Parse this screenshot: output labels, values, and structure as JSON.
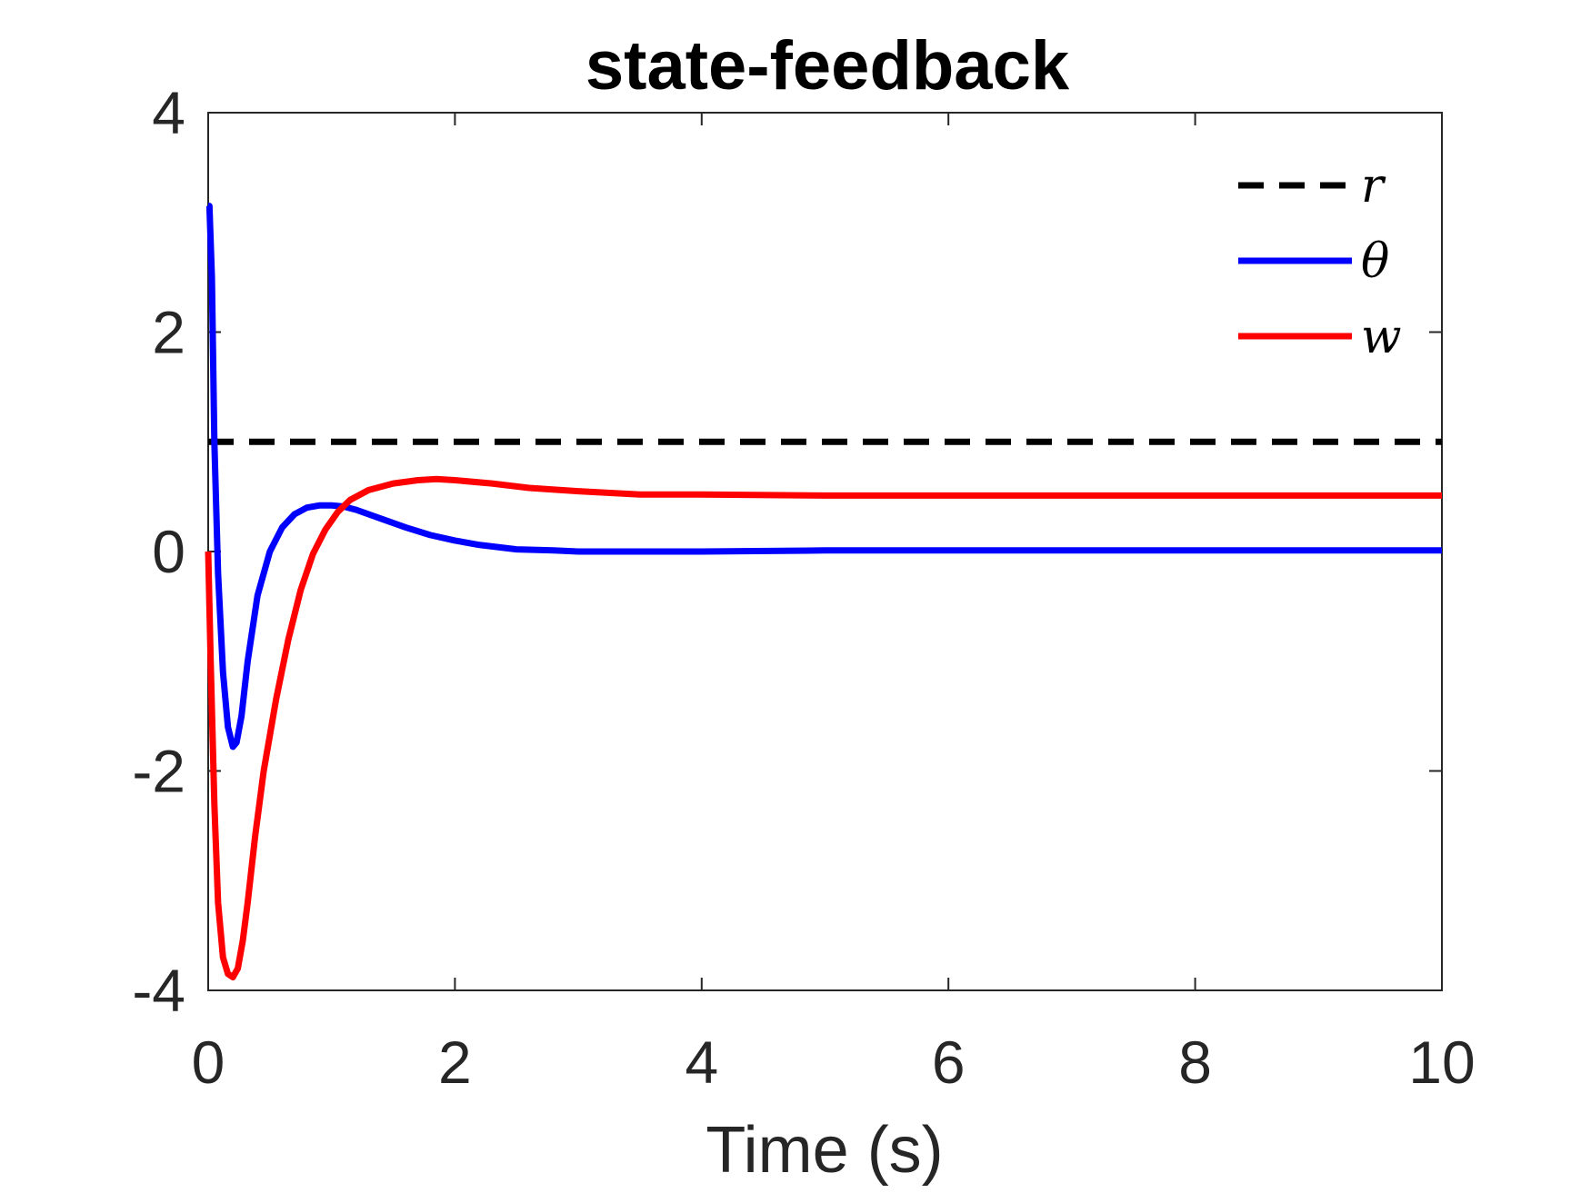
{
  "chart_data": {
    "type": "line",
    "title": "state-feedback",
    "xlabel": "Time (s)",
    "ylabel": "",
    "xlim": [
      0,
      10
    ],
    "ylim": [
      -4,
      4
    ],
    "xticks": [
      0,
      2,
      4,
      6,
      8,
      10
    ],
    "yticks": [
      -4,
      -2,
      0,
      2,
      4
    ],
    "grid": false,
    "legend_position": "top-right",
    "series": [
      {
        "name": "r",
        "color": "#000000",
        "style": "dashed",
        "x": [
          0,
          10
        ],
        "y": [
          1,
          1
        ]
      },
      {
        "name": "θ",
        "color": "#0000ff",
        "style": "solid",
        "x": [
          0,
          0.01,
          0.03,
          0.05,
          0.08,
          0.12,
          0.16,
          0.2,
          0.23,
          0.27,
          0.32,
          0.4,
          0.5,
          0.6,
          0.7,
          0.8,
          0.9,
          1.0,
          1.1,
          1.2,
          1.4,
          1.6,
          1.8,
          2.0,
          2.2,
          2.5,
          2.8,
          3.0,
          3.5,
          4.0,
          5.0,
          6.0,
          7.0,
          8.0,
          9.0,
          10.0
        ],
        "y": [
          3.15,
          3.15,
          2.5,
          1.0,
          -0.2,
          -1.1,
          -1.6,
          -1.78,
          -1.74,
          -1.5,
          -1.0,
          -0.4,
          0.0,
          0.22,
          0.34,
          0.4,
          0.42,
          0.42,
          0.41,
          0.38,
          0.3,
          0.22,
          0.15,
          0.1,
          0.06,
          0.02,
          0.01,
          0.0,
          0.0,
          0.0,
          0.01,
          0.01,
          0.01,
          0.01,
          0.01,
          0.01
        ]
      },
      {
        "name": "w",
        "color": "#ff0000",
        "style": "solid",
        "x": [
          0,
          0.02,
          0.05,
          0.08,
          0.12,
          0.16,
          0.2,
          0.24,
          0.28,
          0.32,
          0.38,
          0.45,
          0.55,
          0.65,
          0.75,
          0.85,
          0.95,
          1.05,
          1.15,
          1.3,
          1.5,
          1.7,
          1.85,
          2.0,
          2.3,
          2.6,
          3.0,
          3.5,
          4.0,
          5.0,
          6.0,
          7.0,
          8.0,
          9.0,
          10.0
        ],
        "y": [
          0.0,
          -1.0,
          -2.3,
          -3.2,
          -3.7,
          -3.85,
          -3.88,
          -3.8,
          -3.55,
          -3.2,
          -2.6,
          -2.0,
          -1.35,
          -0.8,
          -0.35,
          -0.02,
          0.2,
          0.36,
          0.47,
          0.56,
          0.62,
          0.65,
          0.66,
          0.65,
          0.62,
          0.58,
          0.55,
          0.52,
          0.52,
          0.51,
          0.51,
          0.51,
          0.51,
          0.51,
          0.51
        ]
      }
    ]
  }
}
